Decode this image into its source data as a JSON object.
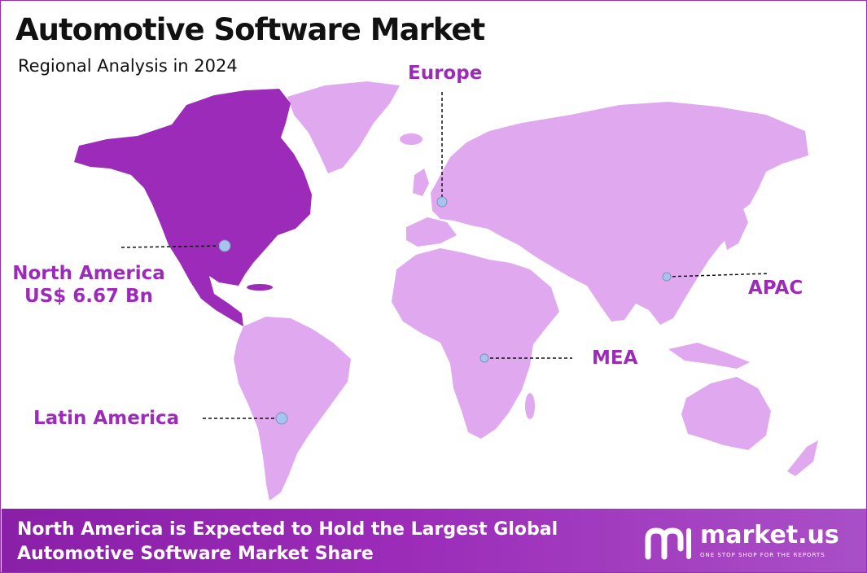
{
  "title": "Automotive Software Market",
  "subtitle": "Regional Analysis in 2024",
  "colors": {
    "highlight_region": "#9b2bb8",
    "other_regions": "#e0a8ee",
    "label_text": "#9b2bb8",
    "marker": "#a6c4ef",
    "banner": "#9b2bb8"
  },
  "regions": [
    {
      "id": "north-america",
      "name": "North America",
      "value": "US$ 6.67 Bn",
      "highlighted": true
    },
    {
      "id": "europe",
      "name": "Europe",
      "value": "",
      "highlighted": false
    },
    {
      "id": "apac",
      "name": "APAC",
      "value": "",
      "highlighted": false
    },
    {
      "id": "mea",
      "name": "MEA",
      "value": "",
      "highlighted": false
    },
    {
      "id": "latin-america",
      "name": "Latin America",
      "value": "",
      "highlighted": false
    }
  ],
  "banner": {
    "line1": "North America is Expected to Hold the Largest Global",
    "line2": "Automotive Software Market Share"
  },
  "logo": {
    "name": "market.us",
    "tagline": "ONE STOP SHOP FOR THE REPORTS",
    "icon": "market-us-logo-icon"
  }
}
